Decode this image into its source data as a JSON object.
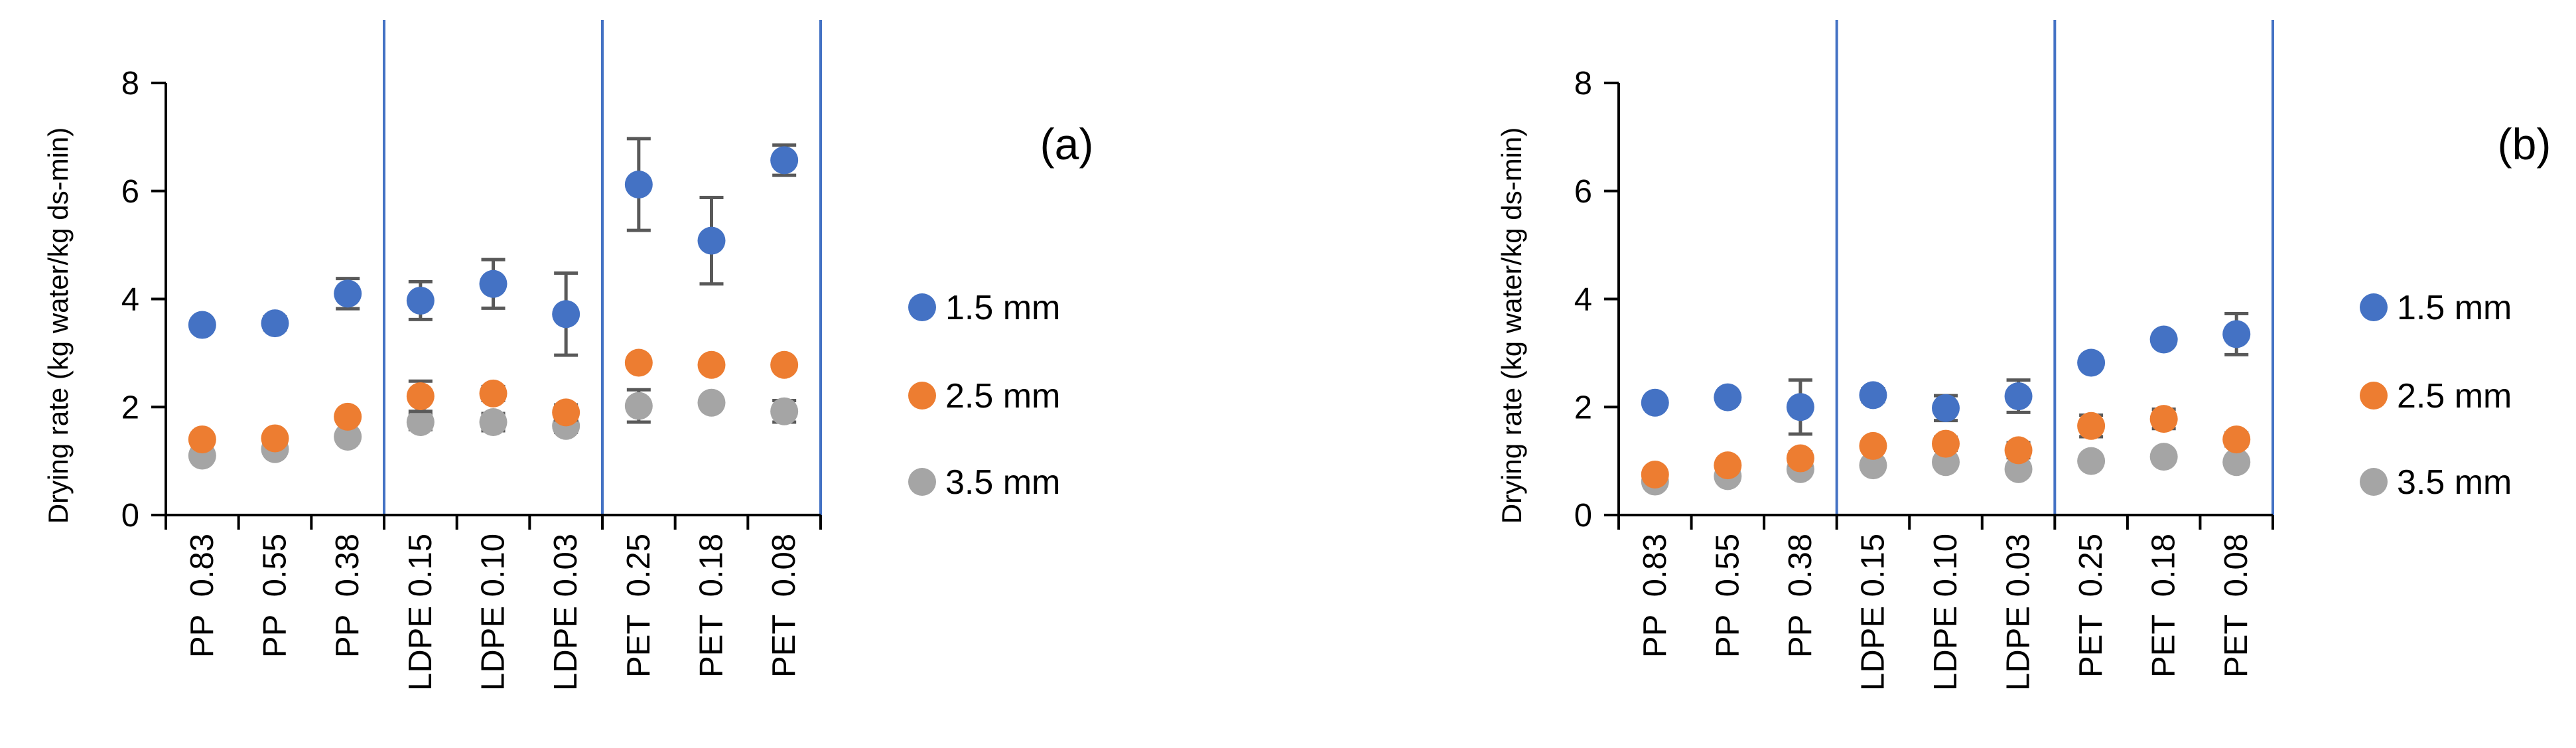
{
  "chart_data": [
    {
      "type": "scatter",
      "panel_label": "(a)",
      "ylabel": "Drying rate (kg water/kg ds-min)",
      "ylim": [
        0,
        8
      ],
      "yticks": [
        "0",
        "2",
        "4",
        "6",
        "8"
      ],
      "categories": [
        "PP  0.83",
        "PP  0.55",
        "PP  0.38",
        "LDPE 0.15",
        "LDPE 0.10",
        "LDPE 0.03",
        "PET  0.25",
        "PET  0.18",
        "PET  0.08"
      ],
      "group_dividers_after": [
        3,
        6
      ],
      "legend_position": "right",
      "series": [
        {
          "name": "1.5 mm",
          "color": "#4472C4",
          "values": [
            3.52,
            3.55,
            4.1,
            3.97,
            4.28,
            3.72,
            6.12,
            5.08,
            6.57
          ],
          "errors": [
            0.0,
            0.12,
            0.28,
            0.35,
            0.45,
            0.76,
            0.85,
            0.8,
            0.28
          ]
        },
        {
          "name": "2.5 mm",
          "color": "#ED7D31",
          "values": [
            1.4,
            1.42,
            1.82,
            2.2,
            2.25,
            1.9,
            2.82,
            2.78,
            2.78
          ],
          "errors": [
            0.0,
            0.0,
            0.1,
            0.28,
            0.13,
            0.14,
            0.1,
            0.0,
            0.1
          ]
        },
        {
          "name": "3.5 mm",
          "color": "#A5A5A5",
          "values": [
            1.1,
            1.22,
            1.45,
            1.72,
            1.72,
            1.65,
            2.02,
            2.08,
            1.92
          ],
          "errors": [
            0.0,
            0.0,
            0.1,
            0.14,
            0.16,
            0.12,
            0.3,
            0.0,
            0.2
          ]
        }
      ]
    },
    {
      "type": "scatter",
      "panel_label": "(b)",
      "ylabel": "Drying rate (kg water/kg ds-min)",
      "ylim": [
        0,
        8
      ],
      "yticks": [
        "0",
        "2",
        "4",
        "6",
        "8"
      ],
      "categories": [
        "PP  0.83",
        "PP  0.55",
        "PP  0.38",
        "LDPE 0.15",
        "LDPE 0.10",
        "LDPE 0.03",
        "PET  0.25",
        "PET  0.18",
        "PET  0.08"
      ],
      "group_dividers_after": [
        3,
        6
      ],
      "legend_position": "right",
      "series": [
        {
          "name": "1.5 mm",
          "color": "#4472C4",
          "values": [
            2.08,
            2.18,
            2.0,
            2.22,
            1.98,
            2.2,
            2.82,
            3.25,
            3.35
          ],
          "errors": [
            0.0,
            0.0,
            0.5,
            0.12,
            0.23,
            0.3,
            0.0,
            0.0,
            0.38
          ]
        },
        {
          "name": "2.5 mm",
          "color": "#ED7D31",
          "values": [
            0.75,
            0.92,
            1.05,
            1.28,
            1.32,
            1.2,
            1.65,
            1.78,
            1.4
          ],
          "errors": [
            0.0,
            0.0,
            0.12,
            0.0,
            0.12,
            0.14,
            0.2,
            0.18,
            0.12
          ]
        },
        {
          "name": "3.5 mm",
          "color": "#A5A5A5",
          "values": [
            0.62,
            0.72,
            0.85,
            0.92,
            0.98,
            0.85,
            1.0,
            1.08,
            0.98
          ],
          "errors": [
            0.0,
            0.0,
            0.0,
            0.0,
            0.0,
            0.0,
            0.0,
            0.0,
            0.0
          ]
        }
      ]
    }
  ]
}
